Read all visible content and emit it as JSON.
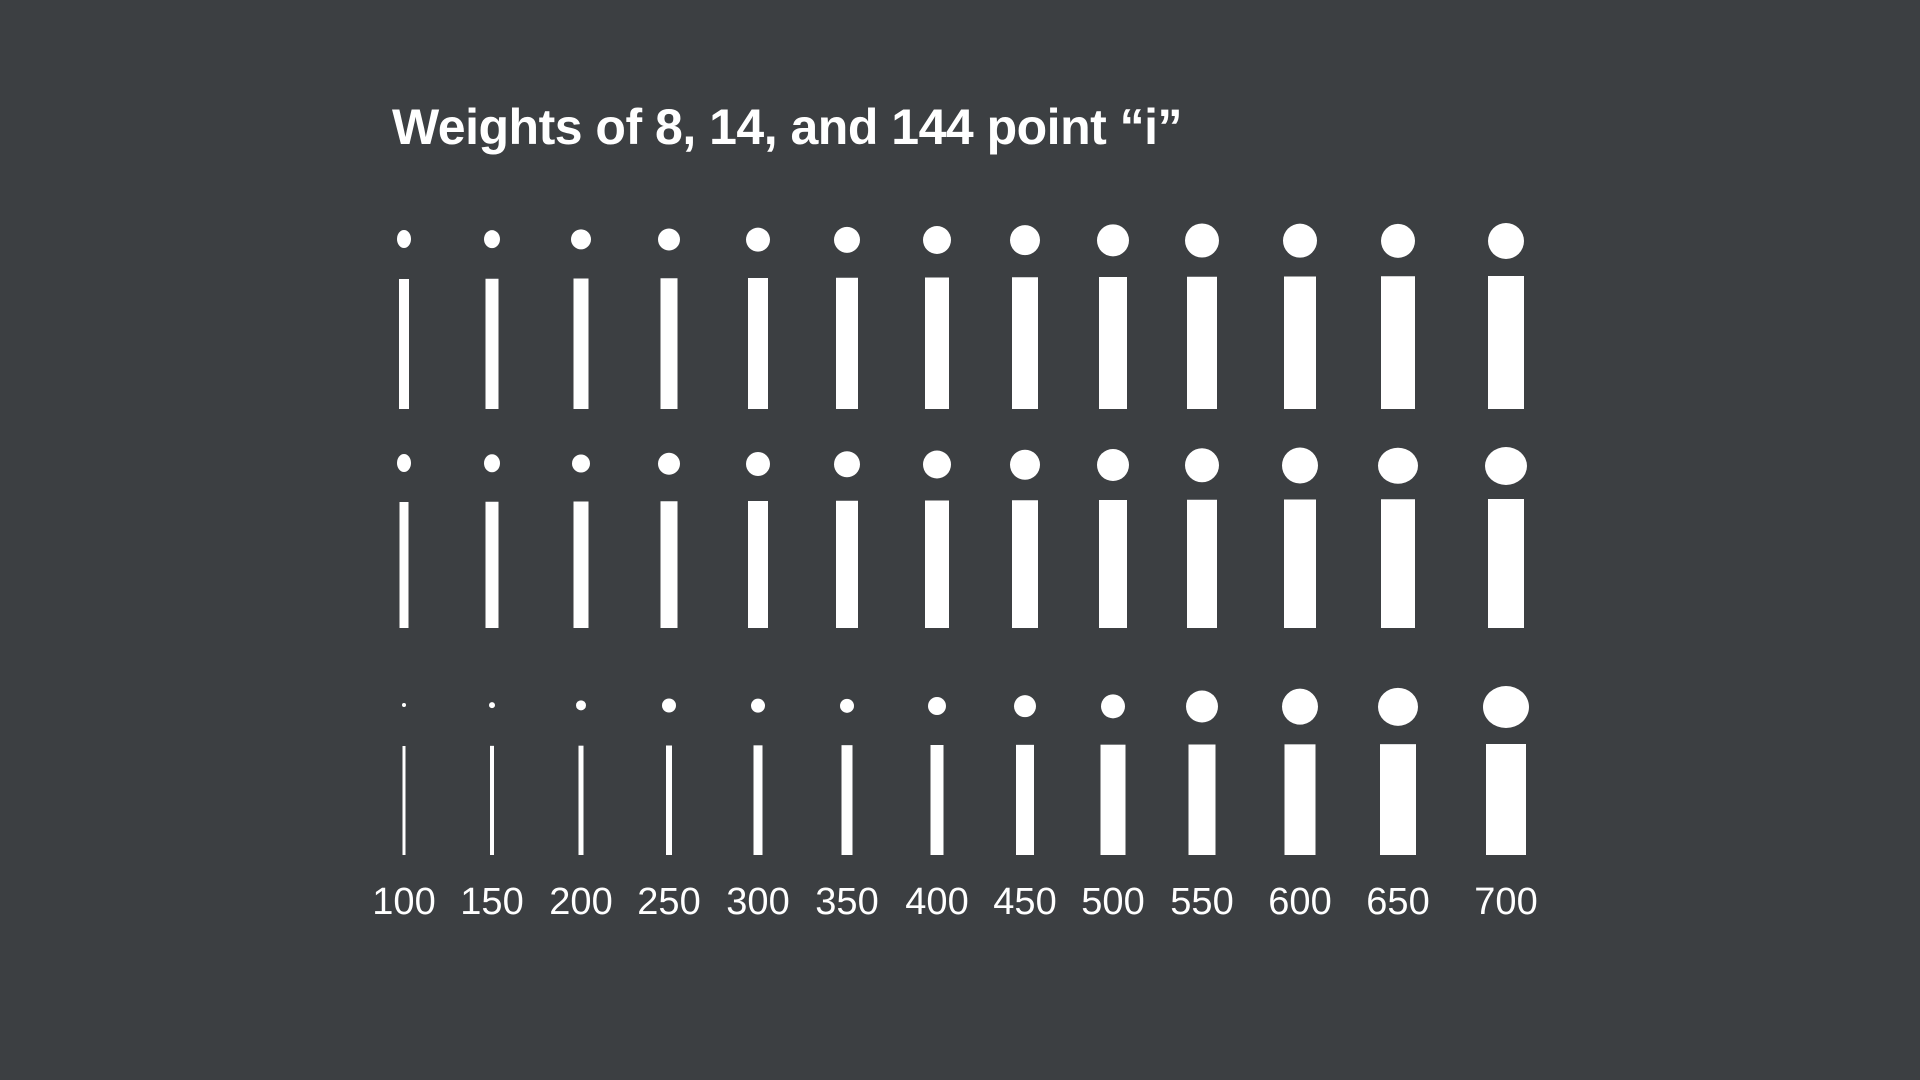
{
  "title": "Weights of 8, 14, and 144 point “i”",
  "colors": {
    "background": "#3c3f42",
    "glyph": "#ffffff",
    "text": "#ffffff"
  },
  "weights": [
    "100",
    "150",
    "200",
    "250",
    "300",
    "350",
    "400",
    "450",
    "500",
    "550",
    "600",
    "650",
    "700"
  ],
  "rows": [
    {
      "name": "row-8pt"
    },
    {
      "name": "row-14pt"
    },
    {
      "name": "row-144pt"
    }
  ]
}
